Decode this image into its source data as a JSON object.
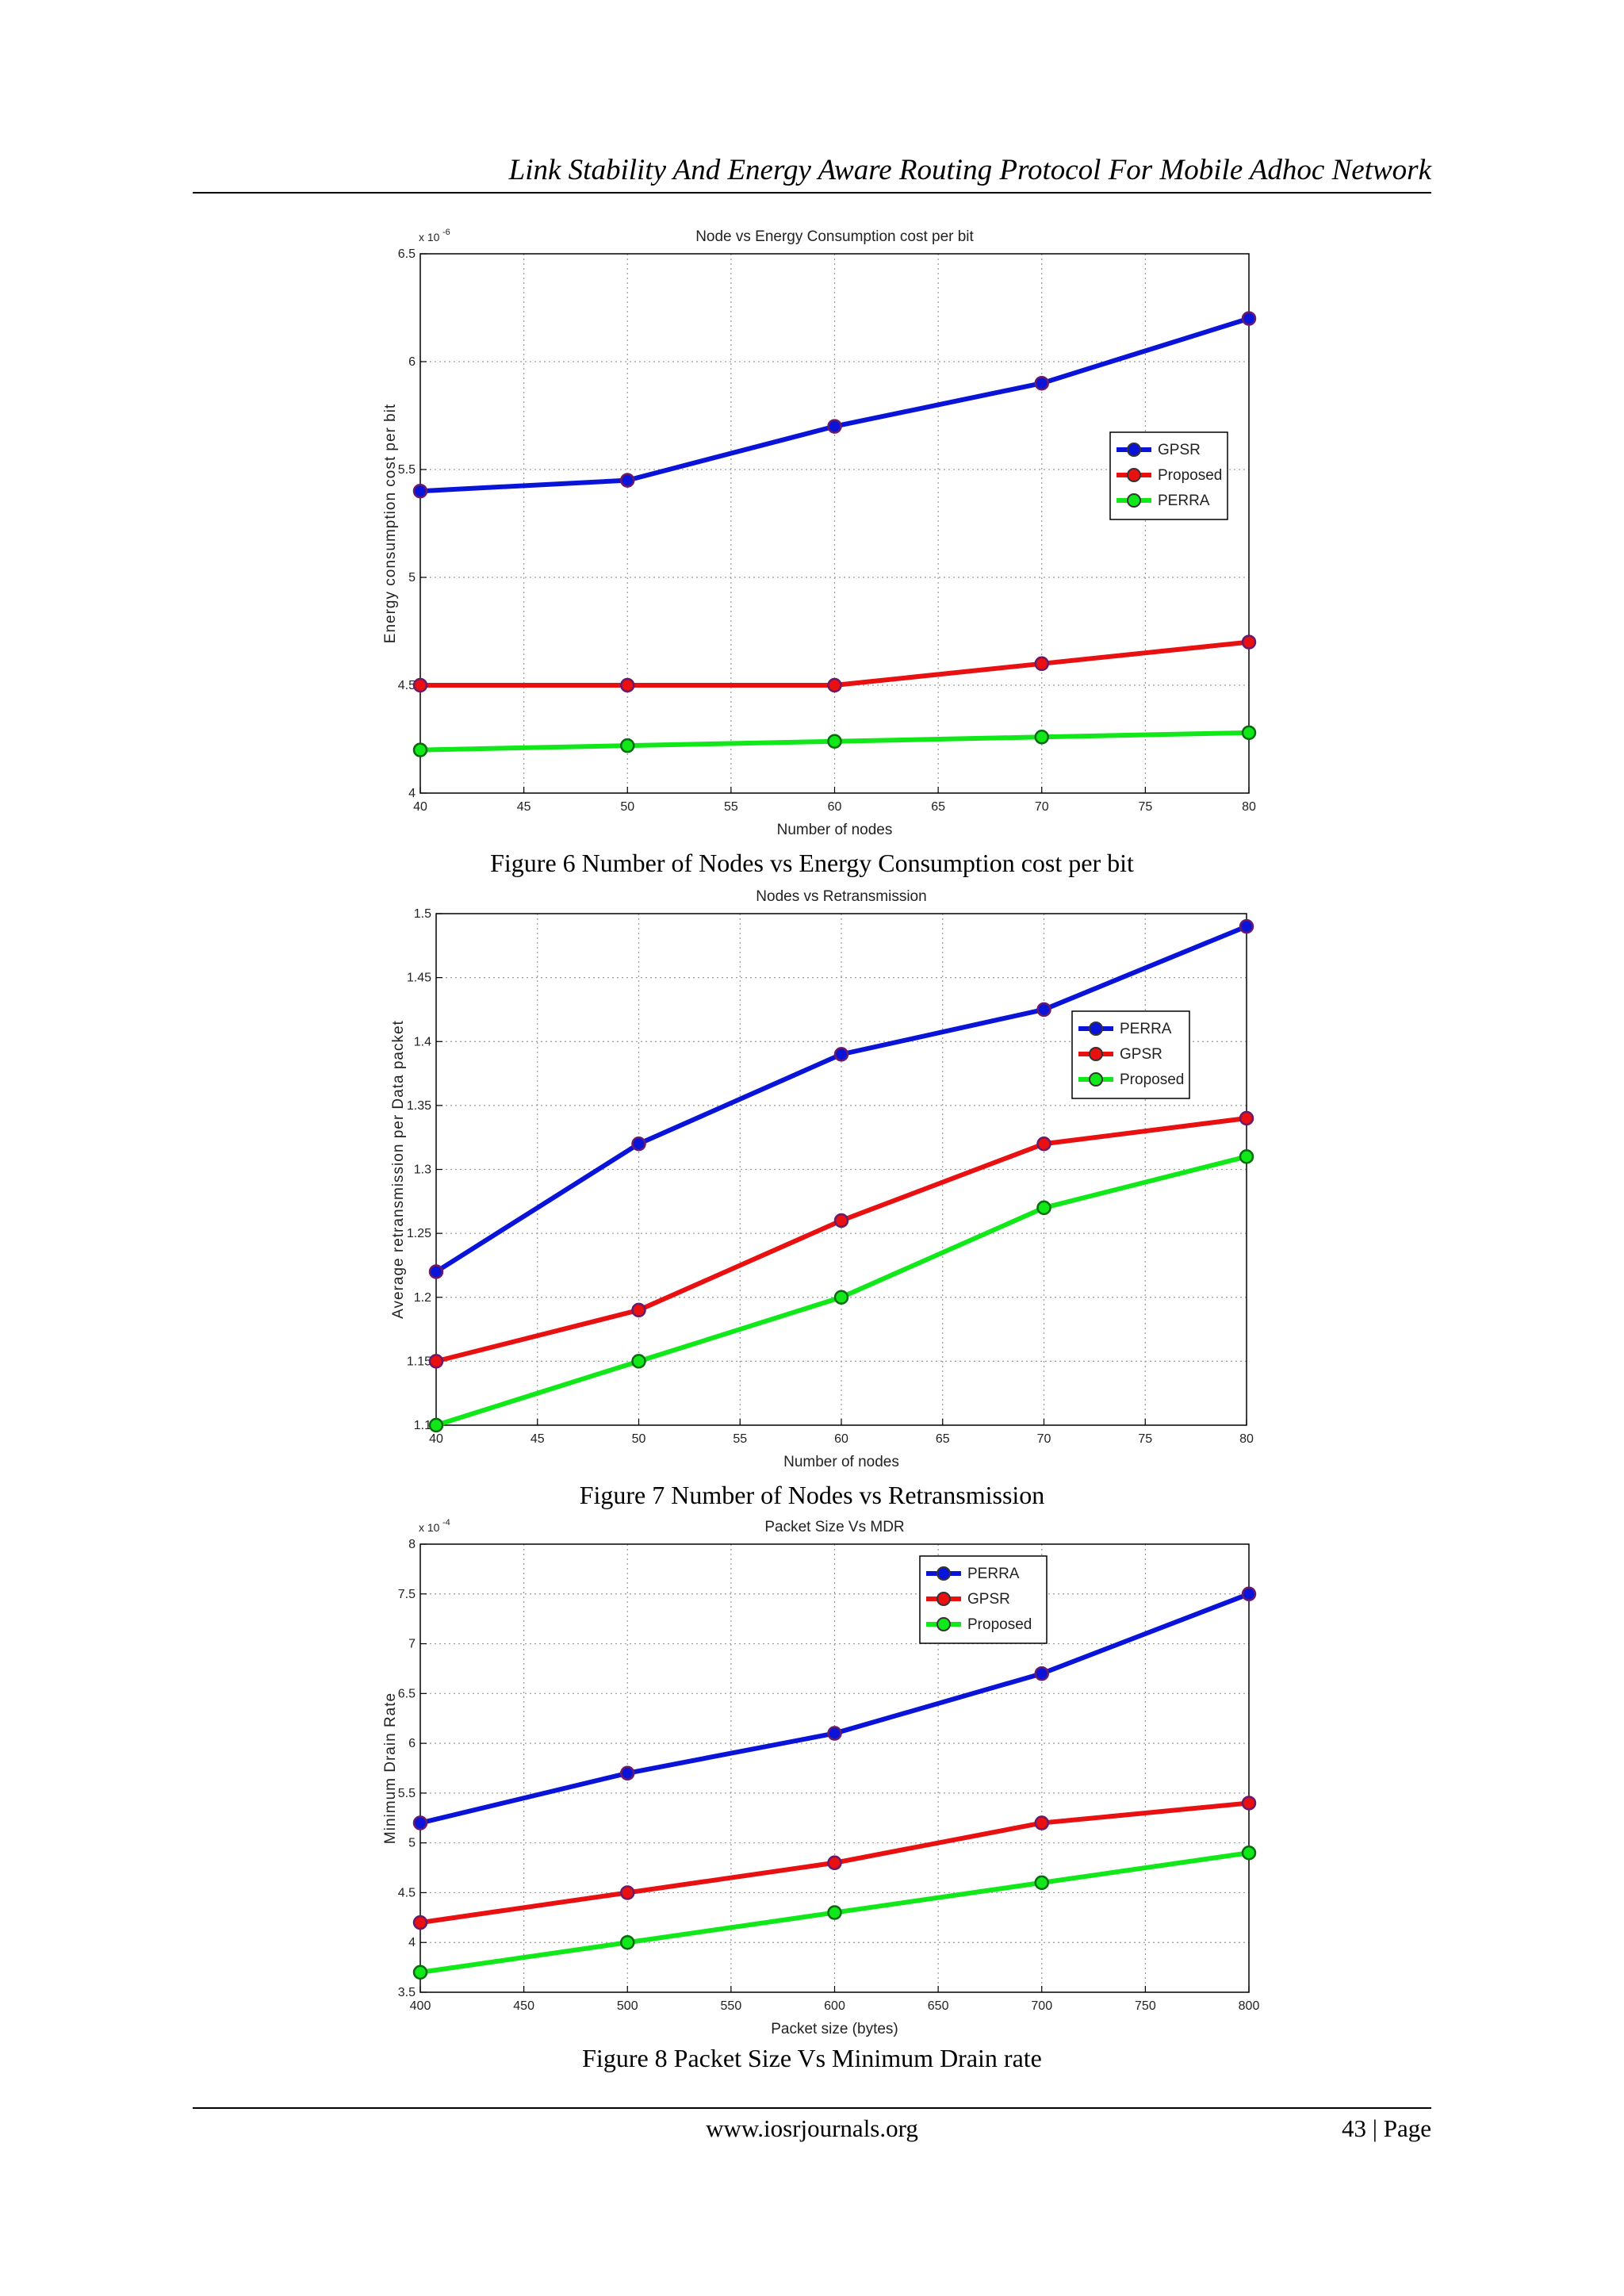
{
  "header": {
    "running_title": "Link Stability And Energy Aware Routing Protocol  For  Mobile Adhoc Network"
  },
  "footer": {
    "url": "www.iosrjournals.org",
    "page_label": "43 | Page"
  },
  "figures": [
    {
      "caption": "Figure 6 Number of Nodes vs Energy Consumption cost per bit"
    },
    {
      "caption": "Figure 7 Number of Nodes vs Retransmission"
    },
    {
      "caption": "Figure 8 Packet Size Vs Minimum Drain rate"
    }
  ],
  "colors": {
    "blue": "#0a14d8",
    "red": "#e81010",
    "green": "#10e81a"
  },
  "chart_data": [
    {
      "type": "line",
      "title": "Node vs Energy Consumption cost per bit",
      "xlabel": "Number of nodes",
      "ylabel": "Energy consumption cost per bit",
      "y_exponent_label": "x 10",
      "y_exponent_power": "-6",
      "xlim": [
        40,
        80
      ],
      "ylim": [
        4,
        6.5
      ],
      "xticks": [
        40,
        45,
        50,
        55,
        60,
        65,
        70,
        75,
        80
      ],
      "yticks": [
        4,
        4.5,
        5,
        5.5,
        6,
        6.5
      ],
      "ytick_labels": [
        "4",
        "4.5",
        "5",
        "5.5",
        "6",
        "6.5"
      ],
      "grid": true,
      "legend_position": "right",
      "x": [
        40,
        50,
        60,
        70,
        80
      ],
      "series": [
        {
          "name": "GPSR",
          "color": "#0a14d8",
          "values": [
            5.4,
            5.45,
            5.7,
            5.9,
            6.2
          ]
        },
        {
          "name": "Proposed",
          "color": "#e81010",
          "values": [
            4.5,
            4.5,
            4.5,
            4.6,
            4.7
          ]
        },
        {
          "name": "PERRA",
          "color": "#10e81a",
          "values": [
            4.2,
            4.22,
            4.24,
            4.26,
            4.28
          ]
        }
      ]
    },
    {
      "type": "line",
      "title": "Nodes vs Retransmission",
      "xlabel": "Number of nodes",
      "ylabel": "Average retransmission per Data packet",
      "y_exponent_label": "",
      "y_exponent_power": "",
      "xlim": [
        40,
        80
      ],
      "ylim": [
        1.1,
        1.5
      ],
      "xticks": [
        40,
        45,
        50,
        55,
        60,
        65,
        70,
        75,
        80
      ],
      "yticks": [
        1.1,
        1.15,
        1.2,
        1.25,
        1.3,
        1.35,
        1.4,
        1.45,
        1.5
      ],
      "ytick_labels": [
        "1.1",
        "1.15",
        "1.2",
        "1.25",
        "1.3",
        "1.35",
        "1.4",
        "1.45",
        "1.5"
      ],
      "grid": true,
      "legend_position": "right",
      "x": [
        40,
        50,
        60,
        70,
        80
      ],
      "series": [
        {
          "name": "PERRA",
          "color": "#0a14d8",
          "values": [
            1.22,
            1.32,
            1.39,
            1.425,
            1.49
          ]
        },
        {
          "name": "GPSR",
          "color": "#e81010",
          "values": [
            1.15,
            1.19,
            1.26,
            1.32,
            1.34
          ]
        },
        {
          "name": "Proposed",
          "color": "#10e81a",
          "values": [
            1.1,
            1.15,
            1.2,
            1.27,
            1.31
          ]
        }
      ]
    },
    {
      "type": "line",
      "title": "Packet Size Vs MDR",
      "xlabel": "Packet size (bytes)",
      "ylabel": "Minimum Drain Rate",
      "y_exponent_label": "x 10",
      "y_exponent_power": "-4",
      "xlim": [
        400,
        800
      ],
      "ylim": [
        3.5,
        8
      ],
      "xticks": [
        400,
        450,
        500,
        550,
        600,
        650,
        700,
        750,
        800
      ],
      "yticks": [
        3.5,
        4,
        4.5,
        5,
        5.5,
        6,
        6.5,
        7,
        7.5,
        8
      ],
      "ytick_labels": [
        "3.5",
        "4",
        "4.5",
        "5",
        "5.5",
        "6",
        "6.5",
        "7",
        "7.5",
        "8"
      ],
      "grid": true,
      "legend_position": "top-center",
      "x": [
        400,
        500,
        600,
        700,
        800
      ],
      "series": [
        {
          "name": "PERRA",
          "color": "#0a14d8",
          "values": [
            5.2,
            5.7,
            6.1,
            6.7,
            7.5
          ]
        },
        {
          "name": "GPSR",
          "color": "#e81010",
          "values": [
            4.2,
            4.5,
            4.8,
            5.2,
            5.4
          ]
        },
        {
          "name": "Proposed",
          "color": "#10e81a",
          "values": [
            3.7,
            4.0,
            4.3,
            4.6,
            4.9
          ]
        }
      ]
    }
  ]
}
